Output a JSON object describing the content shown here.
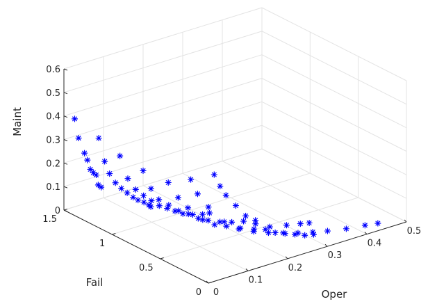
{
  "chart_data": {
    "type": "scatter",
    "projection": "3d",
    "title": "",
    "xlabel": "Oper",
    "ylabel": "Fail",
    "zlabel": "Maint",
    "xlim": [
      0,
      0.5
    ],
    "ylim": [
      0,
      1.5
    ],
    "zlim": [
      0,
      0.6
    ],
    "xticks": [
      "0",
      "0.1",
      "0.2",
      "0.3",
      "0.4",
      "0.5"
    ],
    "yticks": [
      "0",
      "0.5",
      "1",
      "1.5"
    ],
    "zticks": [
      "0",
      "0.1",
      "0.2",
      "0.3",
      "0.4",
      "0.5",
      "0.6"
    ],
    "grid": true,
    "marker": "asterisk",
    "marker_color": "#0000ff",
    "points": [
      [
        0.015,
        1.45,
        0.39
      ],
      [
        0.02,
        1.43,
        0.31
      ],
      [
        0.03,
        1.41,
        0.245
      ],
      [
        0.035,
        1.4,
        0.215
      ],
      [
        0.04,
        1.39,
        0.175
      ],
      [
        0.045,
        1.38,
        0.16
      ],
      [
        0.05,
        1.37,
        0.15
      ],
      [
        0.055,
        1.37,
        0.105
      ],
      [
        0.06,
        1.36,
        0.095
      ],
      [
        0.015,
        1.2,
        0.36
      ],
      [
        0.025,
        1.18,
        0.26
      ],
      [
        0.035,
        1.17,
        0.205
      ],
      [
        0.045,
        1.15,
        0.165
      ],
      [
        0.055,
        1.13,
        0.14
      ],
      [
        0.065,
        1.11,
        0.12
      ],
      [
        0.075,
        1.09,
        0.1
      ],
      [
        0.085,
        1.08,
        0.085
      ],
      [
        0.095,
        1.06,
        0.075
      ],
      [
        0.105,
        1.05,
        0.06
      ],
      [
        0.11,
        1.05,
        0.05
      ],
      [
        0.015,
        0.98,
        0.33
      ],
      [
        0.03,
        0.96,
        0.23
      ],
      [
        0.045,
        0.94,
        0.18
      ],
      [
        0.06,
        0.92,
        0.15
      ],
      [
        0.075,
        0.9,
        0.125
      ],
      [
        0.09,
        0.88,
        0.1
      ],
      [
        0.105,
        0.86,
        0.085
      ],
      [
        0.12,
        0.84,
        0.07
      ],
      [
        0.135,
        0.82,
        0.055
      ],
      [
        0.155,
        0.8,
        0.045
      ],
      [
        0.175,
        0.78,
        0.04
      ],
      [
        0.19,
        0.77,
        0.04
      ],
      [
        0.02,
        0.76,
        0.31
      ],
      [
        0.035,
        0.74,
        0.23
      ],
      [
        0.05,
        0.72,
        0.18
      ],
      [
        0.07,
        0.7,
        0.15
      ],
      [
        0.09,
        0.68,
        0.12
      ],
      [
        0.11,
        0.66,
        0.1
      ],
      [
        0.13,
        0.64,
        0.075
      ],
      [
        0.15,
        0.62,
        0.06
      ],
      [
        0.175,
        0.6,
        0.045
      ],
      [
        0.2,
        0.58,
        0.035
      ],
      [
        0.225,
        0.56,
        0.03
      ],
      [
        0.25,
        0.54,
        0.025
      ],
      [
        0.03,
        0.54,
        0.3
      ],
      [
        0.05,
        0.52,
        0.23
      ],
      [
        0.07,
        0.5,
        0.18
      ],
      [
        0.1,
        0.47,
        0.12
      ],
      [
        0.125,
        0.45,
        0.09
      ],
      [
        0.15,
        0.43,
        0.075
      ],
      [
        0.18,
        0.41,
        0.055
      ],
      [
        0.21,
        0.39,
        0.04
      ],
      [
        0.245,
        0.37,
        0.035
      ],
      [
        0.28,
        0.34,
        0.03
      ],
      [
        0.31,
        0.32,
        0.025
      ],
      [
        0.33,
        0.31,
        0.02
      ],
      [
        0.06,
        0.43,
        0.32
      ],
      [
        0.07,
        0.4,
        0.26
      ],
      [
        0.09,
        0.37,
        0.2
      ],
      [
        0.12,
        0.33,
        0.13
      ],
      [
        0.15,
        0.3,
        0.09
      ],
      [
        0.18,
        0.27,
        0.07
      ],
      [
        0.21,
        0.24,
        0.055
      ],
      [
        0.24,
        0.21,
        0.045
      ],
      [
        0.27,
        0.18,
        0.035
      ],
      [
        0.3,
        0.15,
        0.03
      ],
      [
        0.33,
        0.12,
        0.025
      ],
      [
        0.37,
        0.09,
        0.02
      ],
      [
        0.41,
        0.06,
        0.02
      ],
      [
        0.44,
        0.05,
        0.015
      ],
      [
        0.09,
        0.31,
        0.35
      ],
      [
        0.1,
        0.29,
        0.3
      ],
      [
        0.11,
        0.27,
        0.26
      ],
      [
        0.13,
        0.25,
        0.21
      ],
      [
        0.15,
        0.23,
        0.16
      ],
      [
        0.17,
        0.21,
        0.12
      ],
      [
        0.19,
        0.19,
        0.09
      ],
      [
        0.21,
        0.17,
        0.07
      ],
      [
        0.23,
        0.15,
        0.06
      ],
      [
        0.25,
        0.13,
        0.05
      ],
      [
        0.27,
        0.11,
        0.04
      ],
      [
        0.29,
        0.1,
        0.035
      ]
    ]
  }
}
